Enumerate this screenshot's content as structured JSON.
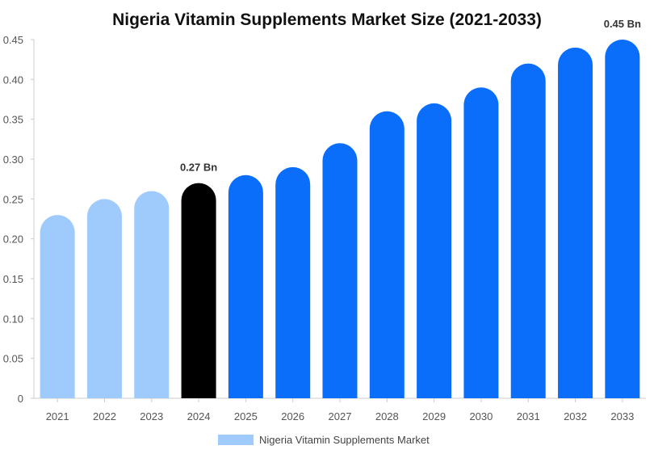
{
  "chart_data": {
    "type": "bar",
    "title": "Nigeria Vitamin Supplements Market Size (2021-2033)",
    "xlabel": "",
    "ylabel": "",
    "categories": [
      "2021",
      "2022",
      "2023",
      "2024",
      "2025",
      "2026",
      "2027",
      "2028",
      "2029",
      "2030",
      "2031",
      "2032",
      "2033"
    ],
    "series": [
      {
        "name": "Nigeria Vitamin Supplements Market",
        "values": [
          0.23,
          0.25,
          0.26,
          0.27,
          0.28,
          0.29,
          0.32,
          0.36,
          0.37,
          0.39,
          0.42,
          0.44,
          0.45
        ]
      }
    ],
    "ylim": [
      0,
      0.45
    ],
    "yticks": [
      "0",
      "0.05",
      "0.10",
      "0.15",
      "0.20",
      "0.25",
      "0.30",
      "0.35",
      "0.40",
      "0.45"
    ],
    "data_labels": [
      {
        "category": "2024",
        "text": "0.27 Bn"
      },
      {
        "category": "2033",
        "text": "0.45 Bn"
      }
    ],
    "grid": false,
    "legend_position": "bottom",
    "colors": {
      "historical": "#9ecbfb",
      "current": "#000000",
      "forecast": "#0a6efb"
    },
    "bar_color_groups": [
      "historical",
      "historical",
      "historical",
      "current",
      "forecast",
      "forecast",
      "forecast",
      "forecast",
      "forecast",
      "forecast",
      "forecast",
      "forecast",
      "forecast"
    ]
  }
}
